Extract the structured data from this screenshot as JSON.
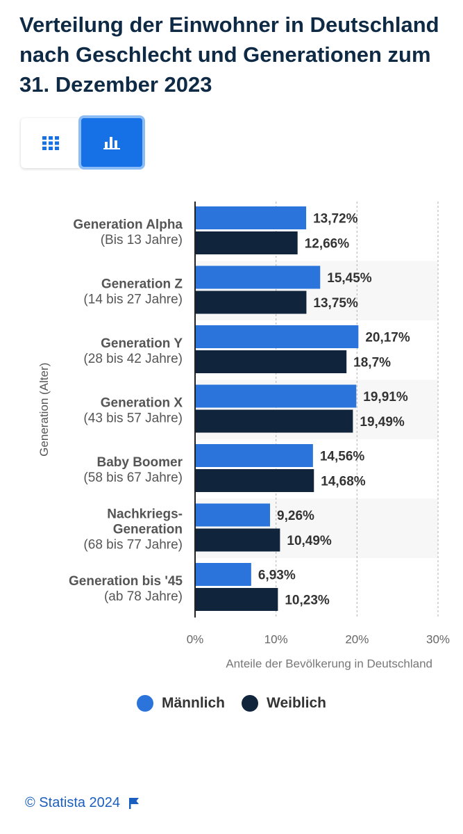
{
  "title": "Verteilung der Einwohner in Deutschland nach Geschlecht und Generationen zum 31. Dezember 2023",
  "view_toggle": {
    "table_icon": "grid-icon",
    "chart_icon": "bar-chart-icon",
    "active": "chart"
  },
  "colors": {
    "male": "#2b74dc",
    "female": "#10243c",
    "title": "#0f2a44",
    "accent": "#1670e6"
  },
  "chart_data": {
    "type": "bar",
    "orientation": "horizontal",
    "categories": [
      {
        "name": "Generation Alpha",
        "range": "(Bis 13 Jahre)"
      },
      {
        "name": "Generation Z",
        "range": "(14 bis 27 Jahre)"
      },
      {
        "name": "Generation Y",
        "range": "(28 bis 42 Jahre)"
      },
      {
        "name": "Generation X",
        "range": "(43 bis 57 Jahre)"
      },
      {
        "name": "Baby Boomer",
        "range": "(58 bis 67 Jahre)"
      },
      {
        "name": "Nachkriegs-\nGeneration",
        "range": "(68 bis 77 Jahre)"
      },
      {
        "name": "Generation bis '45",
        "range": "(ab 78 Jahre)"
      }
    ],
    "series": [
      {
        "name": "Männlich",
        "values": [
          13.72,
          15.45,
          20.17,
          19.91,
          14.56,
          9.26,
          6.93
        ],
        "labels": [
          "13,72%",
          "15,45%",
          "20,17%",
          "19,91%",
          "14,56%",
          "9,26%",
          "6,93%"
        ]
      },
      {
        "name": "Weiblich",
        "values": [
          12.66,
          13.75,
          18.7,
          19.49,
          14.68,
          10.49,
          10.23
        ],
        "labels": [
          "12,66%",
          "13,75%",
          "18,7%",
          "19,49%",
          "14,68%",
          "10,49%",
          "10,23%"
        ]
      }
    ],
    "xlim": [
      0,
      30
    ],
    "xticks": [
      0,
      10,
      20,
      30
    ],
    "xtick_labels": [
      "0%",
      "10%",
      "20%",
      "30%"
    ],
    "xlabel": "Anteile der Bevölkerung in Deutschland",
    "ylabel": "Generation (Alter)",
    "grid": true,
    "legend_position": "bottom"
  },
  "legend": {
    "male": "Männlich",
    "female": "Weiblich"
  },
  "footer": {
    "source": "© Statista 2024",
    "flag_icon": "flag-icon"
  }
}
